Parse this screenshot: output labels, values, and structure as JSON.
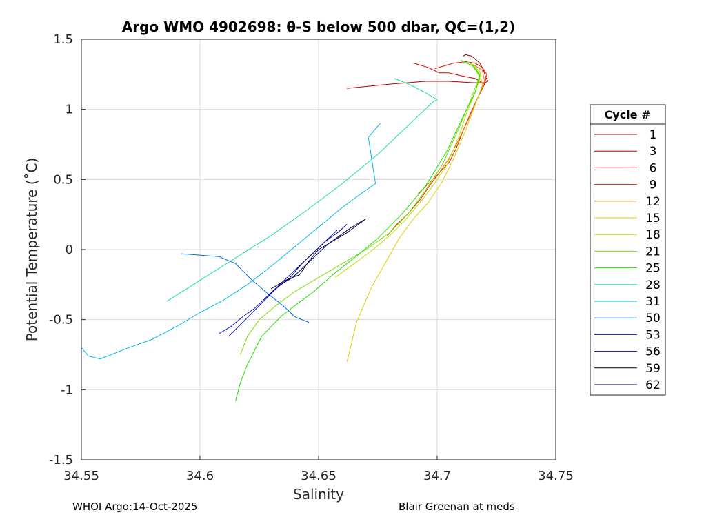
{
  "chart_data": {
    "type": "line",
    "title": "Argo WMO 4902698: θ-S below 500 dbar,  QC=(1,2)",
    "xlabel": "Salinity",
    "ylabel": "Potential Temperature (˚C)",
    "xlim": [
      34.55,
      34.75
    ],
    "ylim": [
      -1.5,
      1.5
    ],
    "xticks": [
      34.55,
      34.6,
      34.65,
      34.7,
      34.75
    ],
    "xtick_labels": [
      "34.55",
      "34.6",
      "34.65",
      "34.7",
      "34.75"
    ],
    "yticks": [
      -1.5,
      -1,
      -0.5,
      0,
      0.5,
      1,
      1.5
    ],
    "ytick_labels": [
      "-1.5",
      "-1",
      "-0.5",
      "0",
      "0.5",
      "1",
      "1.5"
    ],
    "grid": true,
    "legend": {
      "title": "Cycle #",
      "position": "right"
    },
    "series": [
      {
        "name": "1",
        "color": "#8b0000",
        "x": [
          34.7215,
          34.7205,
          34.7195,
          34.718,
          34.716,
          34.7145,
          34.712,
          34.711
        ],
        "y": [
          1.2,
          1.23,
          1.28,
          1.33,
          1.36,
          1.38,
          1.39,
          1.38
        ]
      },
      {
        "name": "3",
        "color": "#b80000",
        "x": [
          34.662,
          34.68,
          34.695,
          34.705,
          34.715,
          34.72,
          34.7215
        ],
        "y": [
          1.15,
          1.18,
          1.2,
          1.2,
          1.19,
          1.19,
          1.2
        ]
      },
      {
        "name": "6",
        "color": "#d40000",
        "x": [
          34.69,
          34.696,
          34.701,
          34.705,
          34.71,
          34.716,
          34.72
        ],
        "y": [
          1.33,
          1.3,
          1.26,
          1.26,
          1.24,
          1.22,
          1.18
        ]
      },
      {
        "name": "9",
        "color": "#e81800",
        "x": [
          34.679,
          34.683,
          34.688,
          34.693,
          34.697,
          34.701,
          34.705,
          34.708,
          34.711,
          34.714,
          34.717,
          34.72,
          34.721,
          34.719,
          34.716,
          34.712,
          34.707,
          34.703,
          34.699
        ],
        "y": [
          0.1,
          0.18,
          0.26,
          0.36,
          0.46,
          0.55,
          0.62,
          0.72,
          0.85,
          0.97,
          1.08,
          1.18,
          1.25,
          1.3,
          1.33,
          1.34,
          1.33,
          1.31,
          1.29
        ]
      },
      {
        "name": "12",
        "color": "#e07000",
        "x": [
          34.692,
          34.697,
          34.701,
          34.705,
          34.709,
          34.713,
          34.717,
          34.72,
          34.719,
          34.715
        ],
        "y": [
          0.4,
          0.48,
          0.55,
          0.65,
          0.78,
          0.92,
          1.08,
          1.2,
          1.28,
          1.32
        ]
      },
      {
        "name": "15",
        "color": "#e0cc00",
        "x": [
          34.662,
          34.666,
          34.672,
          34.678,
          34.684,
          34.69,
          34.696,
          34.702,
          34.707,
          34.712,
          34.716,
          34.719,
          34.718,
          34.714
        ],
        "y": [
          -0.8,
          -0.52,
          -0.28,
          -0.1,
          0.08,
          0.22,
          0.33,
          0.48,
          0.65,
          0.85,
          1.03,
          1.17,
          1.27,
          1.33
        ]
      },
      {
        "name": "18",
        "color": "#bede00",
        "x": [
          34.657,
          34.665,
          34.673,
          34.68,
          34.686,
          34.692,
          34.698,
          34.704,
          34.709,
          34.713,
          34.716,
          34.718,
          34.716,
          34.713
        ],
        "y": [
          -0.2,
          -0.1,
          0.0,
          0.1,
          0.2,
          0.32,
          0.45,
          0.6,
          0.8,
          1.0,
          1.12,
          1.22,
          1.3,
          1.34
        ]
      },
      {
        "name": "21",
        "color": "#7ddd00",
        "x": [
          34.617,
          34.62,
          34.625,
          34.632,
          34.64,
          34.65,
          34.66,
          34.67,
          34.68,
          34.688,
          34.695,
          34.702,
          34.708,
          34.713,
          34.716,
          34.718,
          34.715
        ],
        "y": [
          -0.75,
          -0.62,
          -0.5,
          -0.4,
          -0.3,
          -0.2,
          -0.1,
          0.0,
          0.12,
          0.26,
          0.42,
          0.6,
          0.82,
          1.02,
          1.15,
          1.25,
          1.32
        ]
      },
      {
        "name": "25",
        "color": "#22e000",
        "x": [
          34.615,
          34.617,
          34.62,
          34.623,
          34.626,
          34.63,
          34.634,
          34.64,
          34.648,
          34.656,
          34.665,
          34.675,
          34.685,
          34.695,
          34.704,
          34.711,
          34.716,
          34.718,
          34.715,
          34.71
        ],
        "y": [
          -1.08,
          -0.95,
          -0.82,
          -0.72,
          -0.62,
          -0.55,
          -0.48,
          -0.4,
          -0.3,
          -0.18,
          -0.06,
          0.08,
          0.25,
          0.45,
          0.7,
          0.95,
          1.12,
          1.24,
          1.31,
          1.35
        ]
      },
      {
        "name": "28",
        "color": "#18dfa0",
        "x": [
          34.586,
          34.6,
          34.615,
          34.63,
          34.645,
          34.66,
          34.675,
          34.69,
          34.698,
          34.7,
          34.695,
          34.688,
          34.682
        ],
        "y": [
          -0.37,
          -0.22,
          -0.06,
          0.1,
          0.28,
          0.47,
          0.68,
          0.92,
          1.05,
          1.07,
          1.12,
          1.18,
          1.22
        ]
      },
      {
        "name": "31",
        "color": "#00b8ee",
        "x": [
          34.55,
          34.553,
          34.558,
          34.564,
          34.57,
          34.58,
          34.59,
          34.6,
          34.61,
          34.62,
          34.63,
          34.64,
          34.65,
          34.66,
          34.668,
          34.674,
          34.671,
          34.676
        ],
        "y": [
          -0.7,
          -0.76,
          -0.78,
          -0.74,
          -0.7,
          -0.64,
          -0.55,
          -0.45,
          -0.36,
          -0.25,
          -0.12,
          0.02,
          0.16,
          0.3,
          0.4,
          0.47,
          0.8,
          0.9
        ]
      },
      {
        "name": "50",
        "color": "#0068dd",
        "x": [
          34.592,
          34.6,
          34.608,
          34.615,
          34.622,
          34.629,
          34.635,
          34.64,
          34.646
        ],
        "y": [
          -0.03,
          -0.04,
          -0.05,
          -0.1,
          -0.22,
          -0.32,
          -0.4,
          -0.48,
          -0.52
        ]
      },
      {
        "name": "53",
        "color": "#0010c8",
        "x": [
          34.608,
          34.613,
          34.618,
          34.623,
          34.628,
          34.633,
          34.638,
          34.643,
          34.648,
          34.653,
          34.658
        ],
        "y": [
          -0.6,
          -0.55,
          -0.48,
          -0.42,
          -0.34,
          -0.26,
          -0.18,
          -0.1,
          -0.02,
          0.06,
          0.14
        ]
      },
      {
        "name": "56",
        "color": "#00008e",
        "x": [
          34.612,
          34.618,
          34.625,
          34.632,
          34.638,
          34.643,
          34.648,
          34.653,
          34.658,
          34.662
        ],
        "y": [
          -0.62,
          -0.52,
          -0.4,
          -0.28,
          -0.2,
          -0.1,
          -0.02,
          0.06,
          0.12,
          0.18
        ]
      },
      {
        "name": "59",
        "color": "#050033",
        "x": [
          34.63,
          34.636,
          34.642,
          34.646,
          34.65,
          34.656,
          34.662,
          34.67
        ],
        "y": [
          -0.28,
          -0.22,
          -0.18,
          -0.08,
          0.0,
          0.06,
          0.12,
          0.22
        ]
      },
      {
        "name": "62",
        "color": "#00005c",
        "x": [
          34.633,
          34.639,
          34.644,
          34.649,
          34.654,
          34.659,
          34.664,
          34.669
        ],
        "y": [
          -0.26,
          -0.2,
          -0.12,
          -0.04,
          0.04,
          0.1,
          0.16,
          0.21
        ]
      }
    ]
  },
  "footer": {
    "left": "WHOI Argo:14-Oct-2025",
    "right": "Blair Greenan at meds"
  }
}
